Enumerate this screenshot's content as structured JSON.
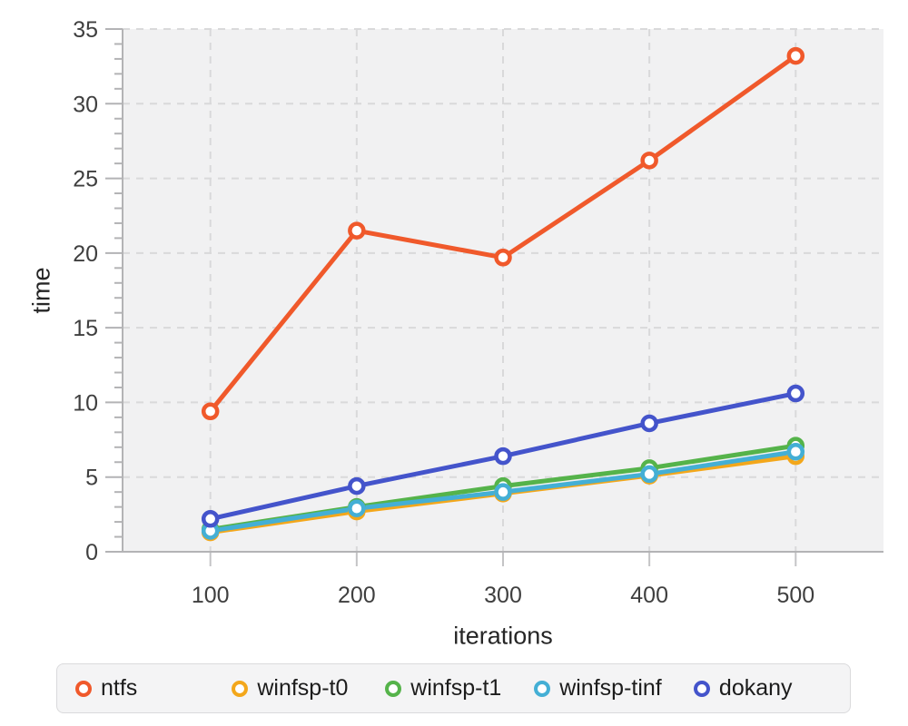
{
  "chart_data": {
    "type": "line",
    "title": "",
    "xlabel": "iterations",
    "ylabel": "time",
    "x": [
      100,
      200,
      300,
      400,
      500
    ],
    "series": [
      {
        "name": "ntfs",
        "color": "#F0592B",
        "values": [
          9.4,
          21.5,
          19.7,
          26.2,
          33.2
        ]
      },
      {
        "name": "winfsp-t0",
        "color": "#F3A71B",
        "values": [
          1.3,
          2.7,
          3.9,
          5.1,
          6.4
        ]
      },
      {
        "name": "winfsp-t1",
        "color": "#55B34A",
        "values": [
          1.5,
          3.0,
          4.4,
          5.6,
          7.1
        ]
      },
      {
        "name": "winfsp-tinf",
        "color": "#44AFD5",
        "values": [
          1.4,
          2.9,
          4.0,
          5.2,
          6.7
        ]
      },
      {
        "name": "dokany",
        "color": "#4454CB",
        "values": [
          2.2,
          4.4,
          6.4,
          8.6,
          10.6
        ]
      }
    ],
    "xlim": [
      40,
      560
    ],
    "ylim": [
      0,
      35
    ],
    "x_ticks": [
      100,
      200,
      300,
      400,
      500
    ],
    "y_ticks": [
      0,
      5,
      10,
      15,
      20,
      25,
      30,
      35
    ],
    "y_minor_tick_step": 1,
    "grid": true,
    "grid_style": "dashed",
    "legend_position": "bottom",
    "colors": {
      "plot_background": "#F1F1F2",
      "grid_line": "#D9D9DA",
      "axis_line": "#B3B3B5",
      "minor_tick": "#B3B3B5",
      "x_tick": "#C4C4C6",
      "tick_label": "#3F3F3F",
      "marker_fill": "#FFFFFF"
    }
  }
}
